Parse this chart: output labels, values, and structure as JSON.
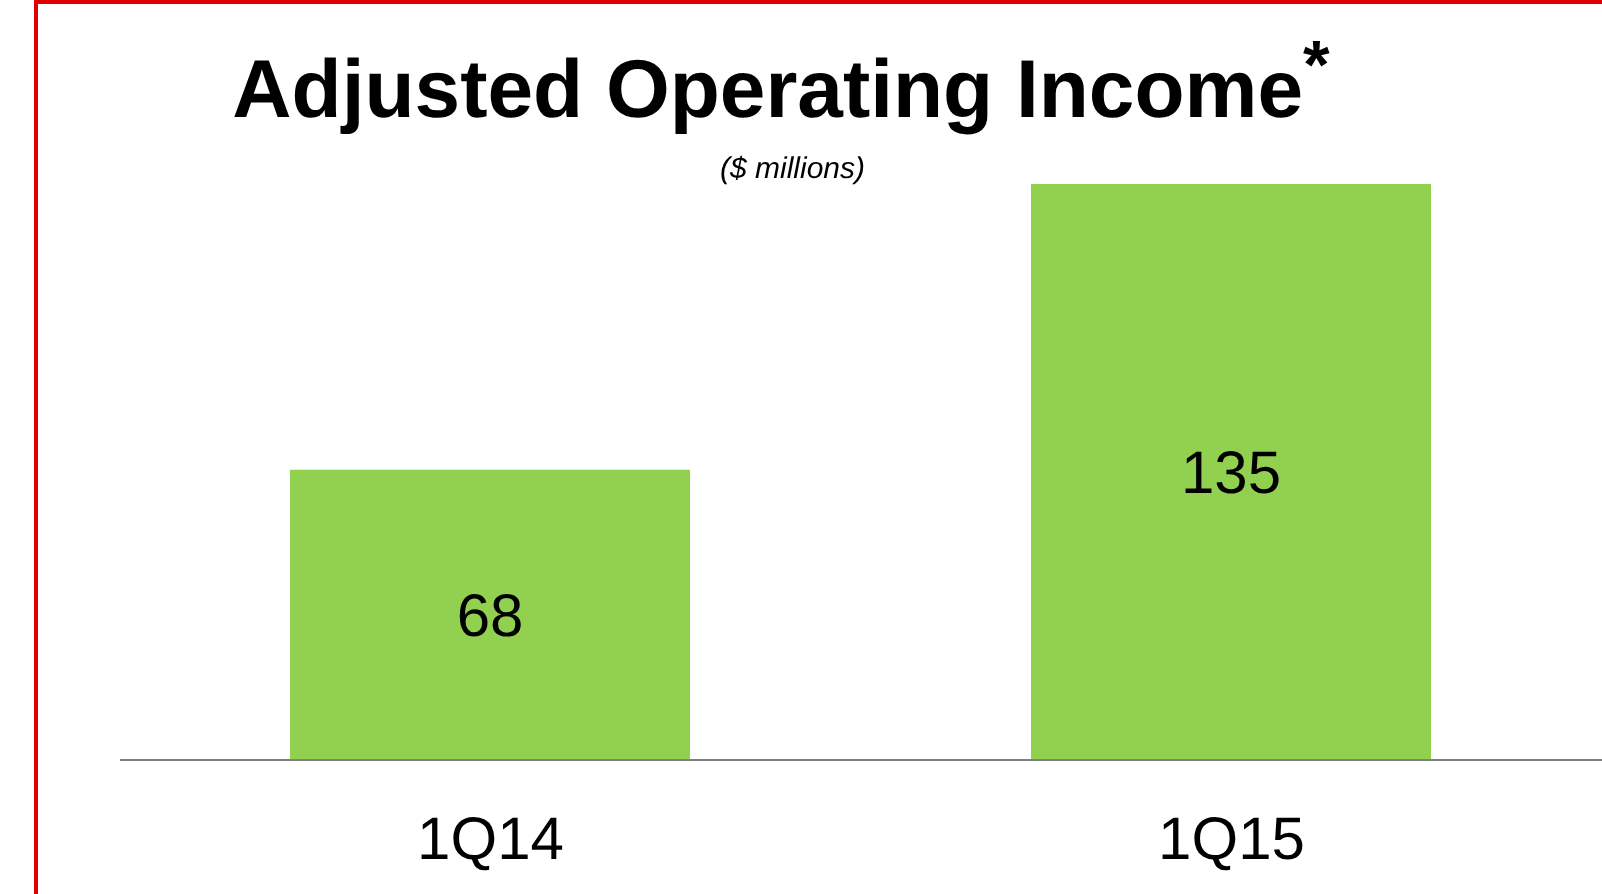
{
  "chart_data": {
    "type": "bar",
    "title": "Adjusted Operating Income$^{*}$",
    "subtitle": "($ millions)",
    "categories": [
      "1Q14",
      "1Q15"
    ],
    "values": [
      68,
      135
    ],
    "color": "#92d050",
    "data_labels": true
  }
}
